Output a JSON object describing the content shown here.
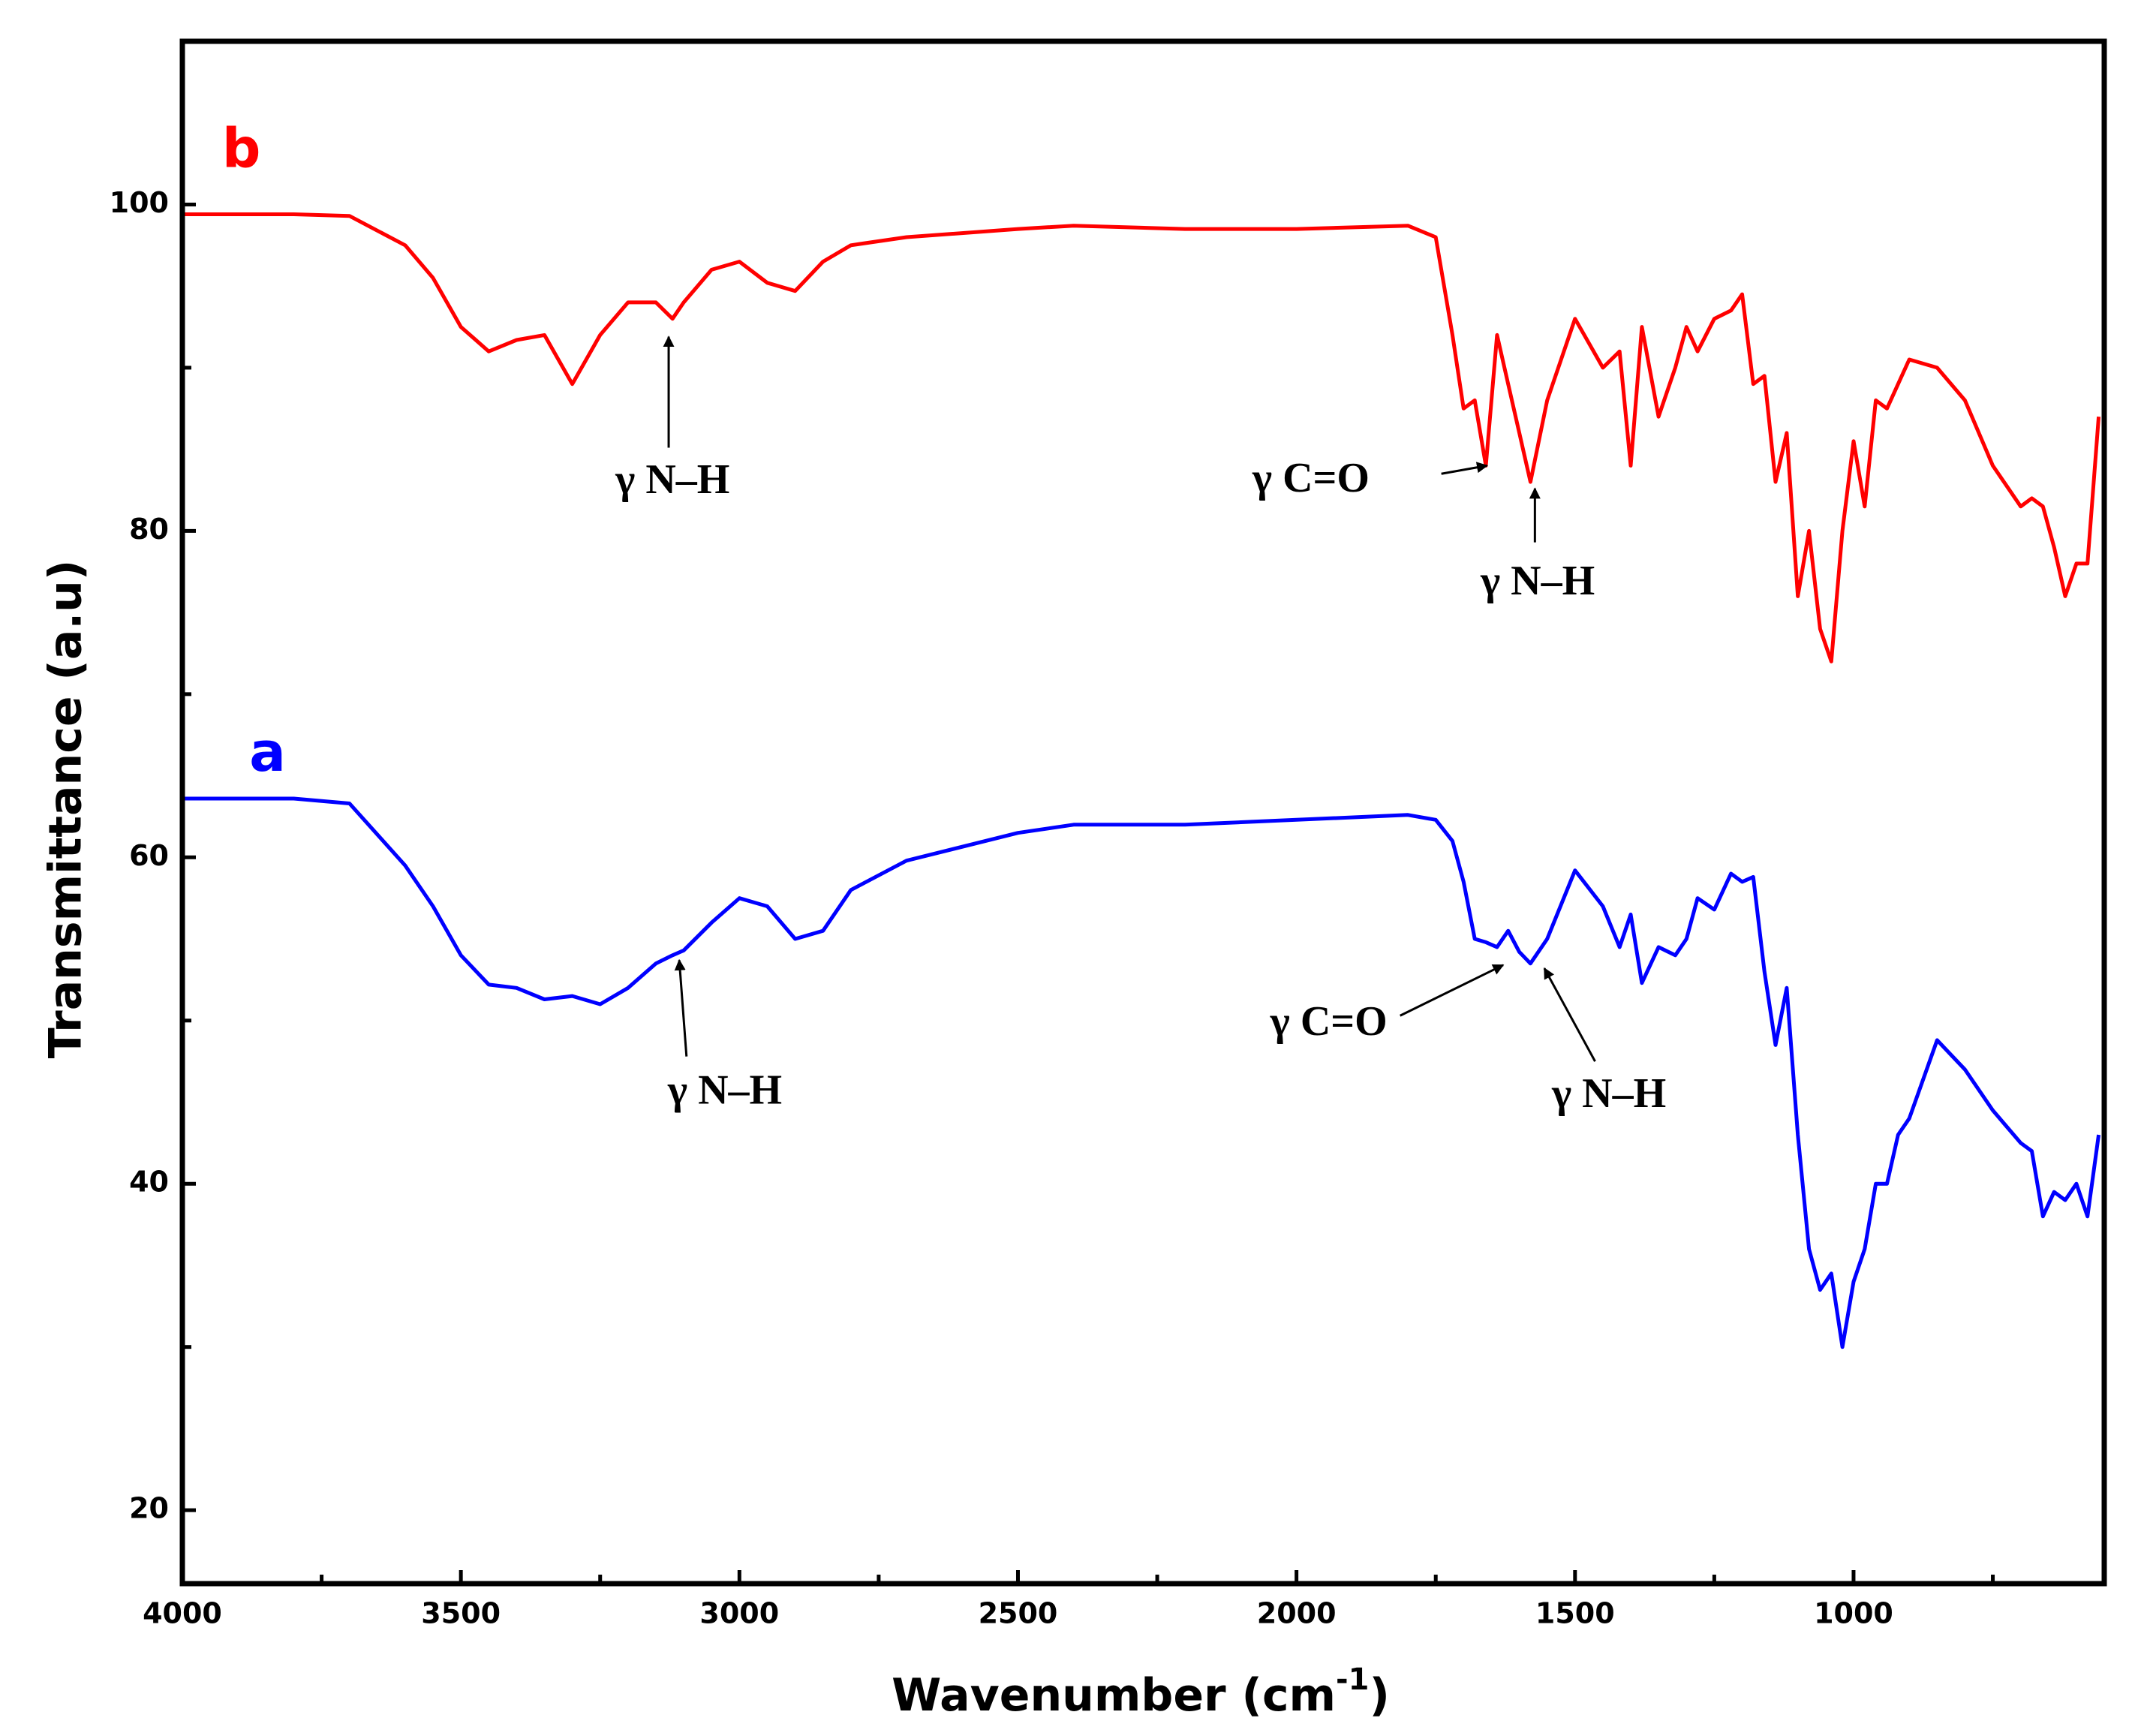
{
  "chart_data": {
    "type": "line",
    "xlabel": [
      "Wavenumber (cm",
      "-1",
      ")"
    ],
    "ylabel": "Transmittance (a.u)",
    "xlim": [
      4000,
      550
    ],
    "ylim": [
      15.5,
      110
    ],
    "xticks": [
      4000,
      3500,
      3000,
      2500,
      2000,
      1500,
      1000
    ],
    "xticks_minor": [
      3750,
      3250,
      2750,
      2250,
      1750,
      1250,
      750
    ],
    "yticks": [
      20,
      40,
      60,
      80,
      100
    ],
    "yticks_minor": [
      30,
      50,
      70,
      90
    ],
    "grid": false,
    "x": [
      4000,
      3800,
      3700,
      3600,
      3550,
      3500,
      3450,
      3400,
      3350,
      3300,
      3250,
      3200,
      3150,
      3120,
      3100,
      3050,
      3000,
      2950,
      2900,
      2850,
      2800,
      2700,
      2500,
      2400,
      2200,
      2000,
      1800,
      1750,
      1720,
      1700,
      1680,
      1660,
      1640,
      1620,
      1600,
      1580,
      1550,
      1500,
      1450,
      1420,
      1400,
      1380,
      1350,
      1320,
      1300,
      1280,
      1250,
      1220,
      1200,
      1180,
      1160,
      1140,
      1120,
      1100,
      1080,
      1060,
      1040,
      1020,
      1000,
      980,
      960,
      940,
      920,
      900,
      850,
      800,
      750,
      700,
      680,
      660,
      640,
      620,
      600,
      580,
      560
    ],
    "series": [
      {
        "name": "b",
        "color": "#ff0000",
        "values": [
          99.4,
          99.4,
          99.3,
          97.5,
          95.5,
          92.5,
          91,
          91.7,
          92,
          89,
          92,
          94,
          94,
          93,
          94,
          96,
          96.5,
          95.2,
          94.7,
          96.5,
          97.5,
          98,
          98.5,
          98.7,
          98.5,
          98.5,
          98.7,
          98,
          92,
          87.5,
          88,
          84,
          92,
          89,
          86,
          83,
          88,
          93,
          90,
          91,
          84,
          92.5,
          87,
          90,
          92.5,
          91,
          93,
          93.5,
          94.5,
          89,
          89.5,
          83,
          86,
          76,
          80,
          74,
          72,
          80,
          85.5,
          81.5,
          88,
          87.5,
          89,
          90.5,
          90,
          88,
          84,
          81.5,
          82,
          81.5,
          79,
          76,
          78,
          78,
          87
        ]
      },
      {
        "name": "a",
        "color": "#0000ff",
        "values": [
          63.6,
          63.6,
          63.3,
          59.5,
          57,
          54,
          52.2,
          52,
          51.3,
          51.5,
          51,
          52,
          53.5,
          54,
          54.3,
          56,
          57.5,
          57,
          55,
          55.5,
          58,
          59.8,
          61.5,
          62,
          62,
          62.3,
          62.6,
          62.3,
          61,
          58.5,
          55,
          54.8,
          54.5,
          55.5,
          54.2,
          53.5,
          55,
          59.2,
          57,
          54.5,
          56.5,
          52.3,
          54.5,
          54,
          55,
          57.5,
          56.8,
          59,
          58.5,
          58.8,
          53,
          48.5,
          52,
          43,
          36,
          33.5,
          34.5,
          30,
          34,
          36,
          40,
          40,
          43,
          44,
          48.8,
          47,
          44.5,
          42.5,
          42,
          38,
          39.5,
          39,
          40,
          38,
          43
        ]
      }
    ],
    "annotations": [
      "γ N–H",
      "γ C=O",
      "γ N–H",
      "γ N–H",
      "γ C=O",
      "γ N–H"
    ]
  }
}
